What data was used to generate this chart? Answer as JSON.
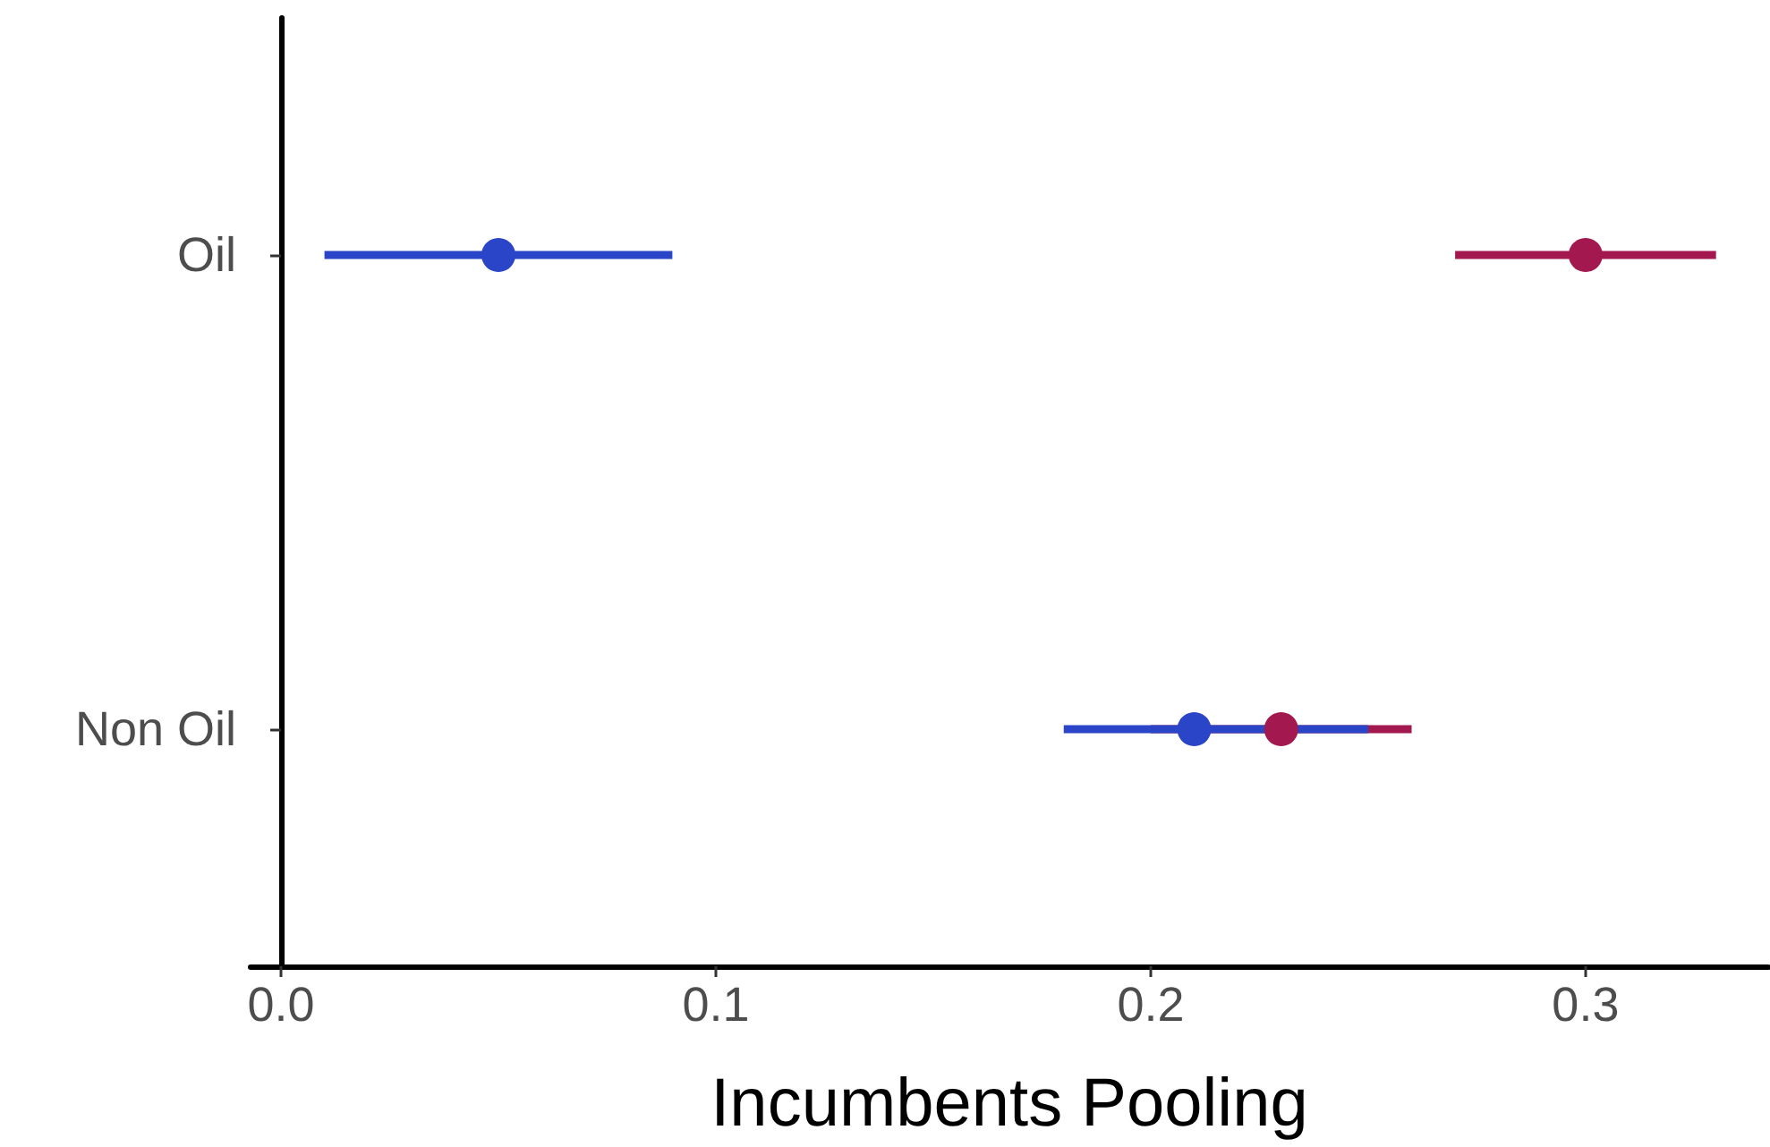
{
  "chart_data": {
    "type": "scatter",
    "orientation": "horizontal",
    "xlabel": "Incumbents Pooling",
    "categories": [
      "Oil",
      "Non Oil"
    ],
    "xlim": [
      -0.007,
      0.342
    ],
    "xticks": [
      {
        "value": 0,
        "label": "0.0"
      },
      0.1,
      0.2,
      0.3
    ],
    "grid": false,
    "marker": "circle",
    "series": [
      {
        "color": "#2b45c8",
        "values": [
          0.05,
          0.21
        ],
        "errors": [
          [
            0.01,
            0.09
          ],
          [
            0.18,
            0.25
          ]
        ]
      },
      {
        "color": "#a3194f",
        "values": [
          0.3,
          0.23
        ],
        "errors": [
          [
            0.27,
            0.33
          ],
          [
            0.2,
            0.26
          ]
        ]
      }
    ]
  }
}
